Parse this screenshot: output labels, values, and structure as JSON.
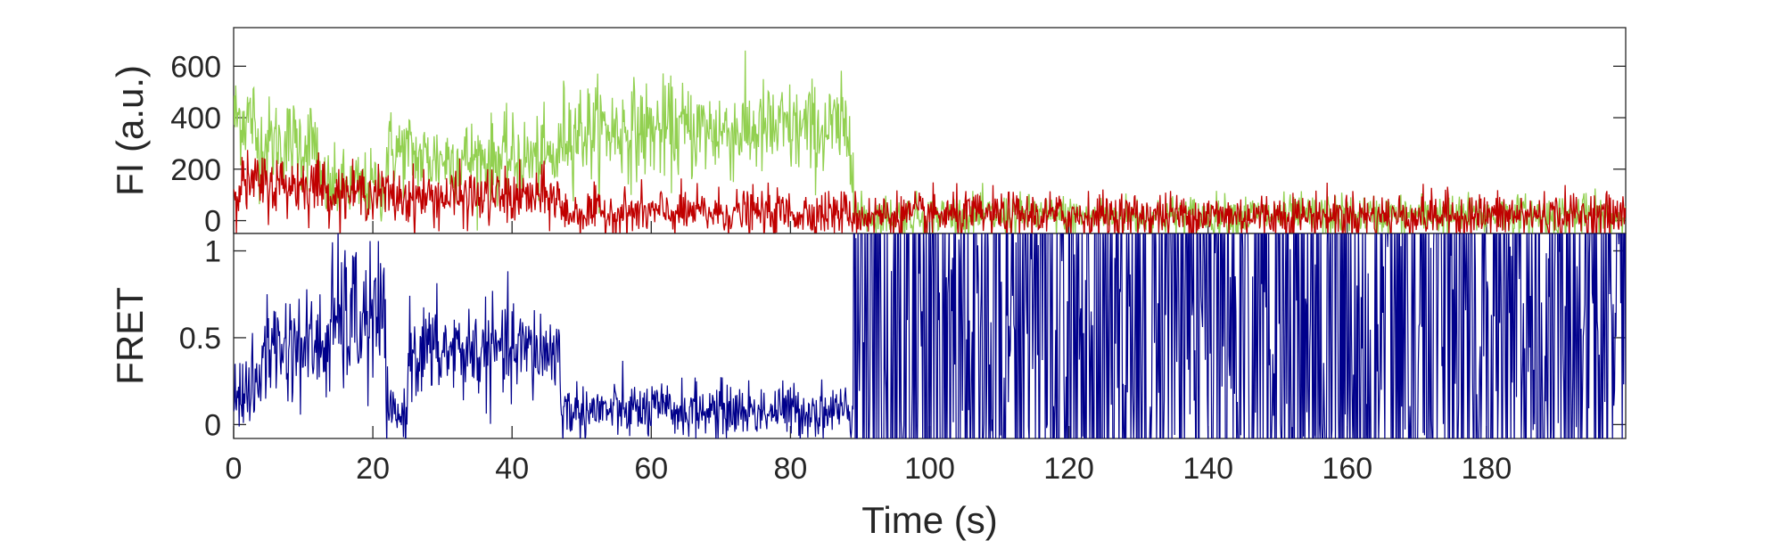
{
  "chart_data": [
    {
      "type": "line",
      "title": "",
      "xlabel": "",
      "ylabel": "FI (a.u.)",
      "xlim": [
        0,
        200
      ],
      "ylim": [
        -50,
        750
      ],
      "yticks": [
        0,
        200,
        400,
        600
      ],
      "ytick_labels": [
        "0",
        "200",
        "400",
        "600"
      ],
      "grid": false,
      "legend": "none",
      "series": [
        {
          "color": "#92d050",
          "segments": [
            {
              "start": 0,
              "end": 3,
              "mean": 400,
              "noise": 90
            },
            {
              "start": 3,
              "end": 12,
              "mean": 300,
              "noise": 90
            },
            {
              "start": 12,
              "end": 22,
              "mean": 130,
              "noise": 70
            },
            {
              "start": 22,
              "end": 26,
              "mean": 270,
              "noise": 80
            },
            {
              "start": 26,
              "end": 47,
              "mean": 240,
              "noise": 80
            },
            {
              "start": 47,
              "end": 89,
              "mean": 350,
              "noise": 95
            },
            {
              "start": 89,
              "end": 200,
              "mean": 20,
              "noise": 40
            }
          ]
        },
        {
          "color": "#c00000",
          "segments": [
            {
              "start": 0,
              "end": 13,
              "mean": 140,
              "noise": 60
            },
            {
              "start": 13,
              "end": 22,
              "mean": 110,
              "noise": 50
            },
            {
              "start": 22,
              "end": 47,
              "mean": 90,
              "noise": 55
            },
            {
              "start": 47,
              "end": 89,
              "mean": 30,
              "noise": 45
            },
            {
              "start": 89,
              "end": 200,
              "mean": 20,
              "noise": 45
            }
          ]
        }
      ]
    },
    {
      "type": "line",
      "title": "",
      "xlabel": "Time (s)",
      "ylabel": "FRET",
      "xlim": [
        0,
        200
      ],
      "ylim": [
        -0.08,
        1.1
      ],
      "yticks": [
        0,
        0.5,
        1
      ],
      "ytick_labels": [
        "0",
        "0.5",
        "1"
      ],
      "xticks": [
        0,
        20,
        40,
        60,
        80,
        100,
        120,
        140,
        160,
        180
      ],
      "xtick_labels": [
        "0",
        "20",
        "40",
        "60",
        "80",
        "100",
        "120",
        "140",
        "160",
        "180"
      ],
      "grid": false,
      "legend": "none",
      "series": [
        {
          "color": "#00008b",
          "segments": [
            {
              "start": 0,
              "end": 4,
              "mean": 0.2,
              "noise": 0.12
            },
            {
              "start": 4,
              "end": 14,
              "mean": 0.45,
              "noise": 0.16
            },
            {
              "start": 14,
              "end": 22,
              "mean": 0.6,
              "noise": 0.22
            },
            {
              "start": 22,
              "end": 25,
              "mean": 0.05,
              "noise": 0.08
            },
            {
              "start": 25,
              "end": 47,
              "mean": 0.42,
              "noise": 0.14
            },
            {
              "start": 47,
              "end": 89,
              "mean": 0.08,
              "noise": 0.08
            },
            {
              "start": 89,
              "end": 200,
              "mean": 0.5,
              "noise": 0.55
            }
          ]
        }
      ]
    }
  ]
}
